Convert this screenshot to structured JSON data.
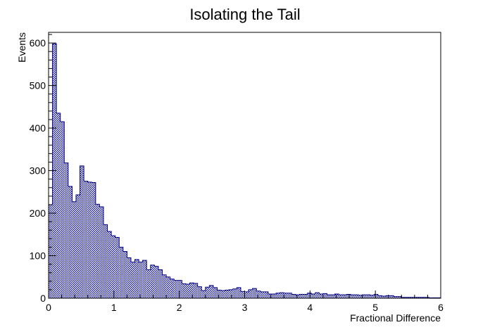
{
  "chart_data": {
    "type": "histogram",
    "title": "Isolating the Tail",
    "xlabel": "Fractional Difference",
    "ylabel": "Events",
    "xlim": [
      0,
      6
    ],
    "ylim": [
      0,
      625
    ],
    "bin_width": 0.06,
    "x_ticks": [
      0,
      1,
      2,
      3,
      4,
      5,
      6
    ],
    "y_ticks": [
      0,
      100,
      200,
      300,
      400,
      500,
      600
    ],
    "x_tick_labels": [
      "0",
      "1",
      "2",
      "3",
      "4",
      "5",
      "6"
    ],
    "y_tick_labels": [
      "0",
      "100",
      "200",
      "300",
      "400",
      "500",
      "600"
    ],
    "fill_color": "#1a1aa0",
    "line_color": "#000080",
    "grid": false,
    "values": [
      220,
      598,
      435,
      415,
      318,
      263,
      227,
      243,
      311,
      275,
      273,
      272,
      221,
      215,
      173,
      157,
      147,
      143,
      120,
      110,
      95,
      85,
      91,
      85,
      89,
      67,
      78,
      75,
      67,
      55,
      50,
      45,
      42,
      42,
      34,
      33,
      36,
      35,
      27,
      18,
      26,
      30,
      25,
      19,
      18,
      19,
      20,
      22,
      25,
      16,
      15,
      20,
      23,
      17,
      15,
      15,
      10,
      10,
      12,
      13,
      12,
      12,
      9,
      8,
      9,
      9,
      12,
      10,
      13,
      10,
      11,
      8,
      8,
      10,
      8,
      8,
      9,
      8,
      8,
      7,
      8,
      8,
      7,
      9,
      6,
      5,
      6,
      6,
      4,
      4,
      2,
      2,
      2,
      2,
      2,
      2,
      2,
      1,
      1,
      1
    ]
  }
}
